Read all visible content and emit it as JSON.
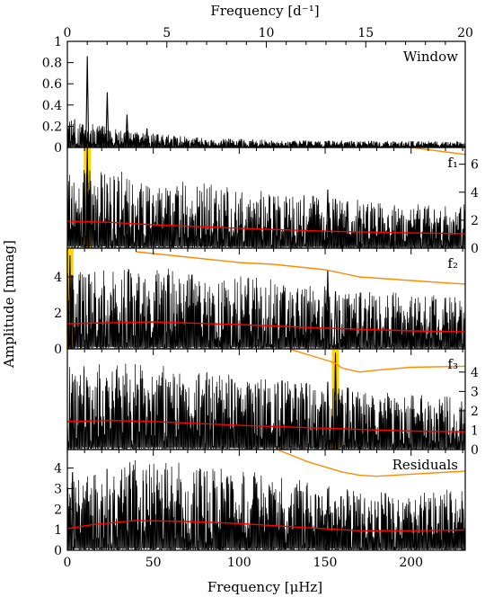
{
  "figure": {
    "top_axis_label": "Frequency [d⁻¹]",
    "bottom_axis_label": "Frequency [μHz]",
    "y_axis_label": "Amplitude [mmag]"
  },
  "colors": {
    "spectrum": "#000000",
    "noise": "#ff0000",
    "snr": "#ff8c00",
    "highlight": "#ffd700"
  },
  "chart_data": [
    {
      "type": "line",
      "panel": "window",
      "label": "Window",
      "x_unit": "μHz",
      "xlim": [
        0,
        231.5
      ],
      "ylim": [
        0,
        1.0
      ],
      "secondary_x_axis": {
        "unit": "d⁻¹",
        "range": [
          0,
          20
        ],
        "ticks": [
          0,
          5,
          10,
          15,
          20
        ]
      },
      "left_ticks": [
        0,
        0.2,
        0.4,
        0.6,
        0.8,
        1
      ],
      "left_tick_labels": [
        "0",
        "0.2",
        "0.4",
        "0.6",
        "0.8",
        "1"
      ],
      "spectrum_peaks": [
        [
          11.6,
          0.86
        ],
        [
          23.2,
          0.52
        ],
        [
          34.7,
          0.31
        ],
        [
          46.3,
          0.18
        ],
        [
          57.9,
          0.1
        ],
        [
          69.4,
          0.06
        ],
        [
          81.0,
          0.04
        ]
      ]
    },
    {
      "type": "line",
      "panel": "f1",
      "label": "f₁",
      "x_unit": "μHz",
      "xlim": [
        0,
        231.5
      ],
      "ylim": [
        0,
        4.3
      ],
      "left_ticks": [],
      "right_axis": {
        "ylim": [
          0,
          7.2
        ],
        "ticks": [
          0,
          2,
          4,
          6
        ],
        "tick_labels": [
          "0",
          "2",
          "4",
          "6"
        ]
      },
      "highlight_x": 11.6,
      "spectrum_peaks": [
        [
          11.6,
          4.3
        ],
        [
          23.2,
          2.7
        ],
        [
          34.7,
          2.0
        ],
        [
          151.5,
          2.5
        ],
        [
          156.0,
          2.1
        ],
        [
          163.0,
          2.0
        ],
        [
          170.0,
          1.6
        ]
      ],
      "noise_level": {
        "x": [
          0,
          25,
          50,
          100,
          150,
          200,
          231.5
        ],
        "y": [
          1.15,
          1.1,
          1.0,
          0.85,
          0.72,
          0.65,
          0.62
        ]
      },
      "snr_curve": {
        "x": [
          9,
          20,
          40,
          60,
          80,
          100,
          120,
          150,
          170,
          200,
          231.5
        ],
        "y": [
          7.0,
          6.6,
          6.3,
          6.0,
          5.7,
          5.5,
          5.3,
          4.8,
          4.5,
          4.3,
          4.0
        ]
      }
    },
    {
      "type": "line",
      "panel": "f2",
      "label": "f₂",
      "x_unit": "μHz",
      "xlim": [
        0,
        231.5
      ],
      "ylim": [
        0,
        5.6
      ],
      "left_ticks": [
        0,
        2,
        4
      ],
      "left_tick_labels": [
        "0",
        "2",
        "4"
      ],
      "highlight_x": 1.5,
      "spectrum_peaks": [
        [
          1.5,
          5.2
        ],
        [
          3.0,
          4.1
        ],
        [
          151.5,
          4.4
        ],
        [
          156.0,
          3.2
        ],
        [
          163.0,
          2.8
        ]
      ],
      "noise_level": {
        "x": [
          0,
          25,
          50,
          100,
          150,
          200,
          231.5
        ],
        "y": [
          1.4,
          1.45,
          1.5,
          1.35,
          1.15,
          1.0,
          0.95
        ]
      },
      "snr_curve": {
        "x": [
          40,
          60,
          80,
          100,
          120,
          150,
          170,
          200,
          231.5
        ],
        "y": [
          5.4,
          5.2,
          5.0,
          4.8,
          4.7,
          4.4,
          4.0,
          3.8,
          3.6
        ]
      }
    },
    {
      "type": "line",
      "panel": "f3",
      "label": "f₃",
      "x_unit": "μHz",
      "xlim": [
        0,
        231.5
      ],
      "ylim": [
        0,
        5.2
      ],
      "left_ticks": [],
      "right_axis": {
        "ylim": [
          0,
          5.2
        ],
        "ticks": [
          0,
          1,
          2,
          3,
          4
        ],
        "tick_labels": [
          "0",
          "1",
          "2",
          "3",
          "4"
        ]
      },
      "highlight_x": 156.0,
      "spectrum_peaks": [
        [
          156.0,
          5.0
        ],
        [
          151.5,
          3.5
        ],
        [
          163.0,
          3.2
        ],
        [
          170.0,
          2.6
        ],
        [
          3.0,
          3.0
        ]
      ],
      "noise_level": {
        "x": [
          0,
          25,
          50,
          100,
          150,
          200,
          231.5
        ],
        "y": [
          1.45,
          1.5,
          1.45,
          1.25,
          1.1,
          0.95,
          0.92
        ]
      },
      "snr_curve": {
        "x": [
          125,
          140,
          155,
          160,
          170,
          180,
          200,
          231.5
        ],
        "y": [
          5.3,
          4.9,
          4.5,
          4.2,
          4.0,
          4.1,
          4.25,
          4.3
        ]
      }
    },
    {
      "type": "line",
      "panel": "residuals",
      "label": "Residuals",
      "x_unit": "μHz",
      "xlim": [
        0,
        231.5
      ],
      "ylim": [
        0,
        4.9
      ],
      "left_ticks": [
        0,
        1,
        2,
        3,
        4
      ],
      "left_tick_labels": [
        "0",
        "1",
        "2",
        "3",
        "4"
      ],
      "bottom_ticks": [
        0,
        50,
        100,
        150,
        200
      ],
      "spectrum_peaks": [
        [
          3.0,
          3.8
        ],
        [
          40,
          3.4
        ],
        [
          90,
          3.3
        ],
        [
          151.5,
          3.0
        ],
        [
          163.0,
          2.9
        ]
      ],
      "noise_level": {
        "x": [
          0,
          15,
          40,
          70,
          100,
          140,
          170,
          200,
          231.5
        ],
        "y": [
          1.05,
          1.25,
          1.45,
          1.4,
          1.3,
          1.1,
          0.95,
          0.95,
          0.98
        ]
      },
      "snr_curve": {
        "x": [
          122,
          140,
          160,
          170,
          180,
          200,
          231.5
        ],
        "y": [
          4.9,
          4.3,
          3.8,
          3.65,
          3.6,
          3.7,
          3.85
        ]
      }
    }
  ]
}
